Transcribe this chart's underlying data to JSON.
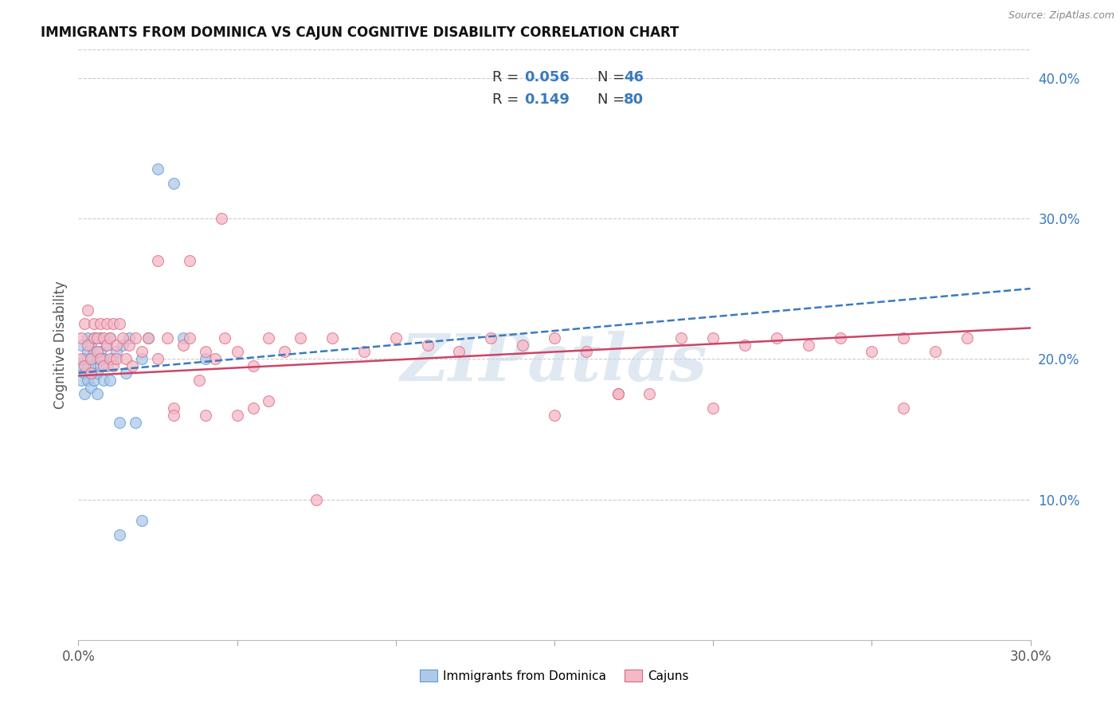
{
  "title": "IMMIGRANTS FROM DOMINICA VS CAJUN COGNITIVE DISABILITY CORRELATION CHART",
  "source": "Source: ZipAtlas.com",
  "ylabel": "Cognitive Disability",
  "xlim": [
    0.0,
    0.3
  ],
  "ylim": [
    0.0,
    0.42
  ],
  "yticks_right": [
    0.1,
    0.2,
    0.3,
    0.4
  ],
  "ytick_labels_right": [
    "10.0%",
    "20.0%",
    "30.0%",
    "40.0%"
  ],
  "watermark": "ZIPatlas",
  "legend_R1": "R = 0.056",
  "legend_N1": "N = 46",
  "legend_R2": "R =  0.149",
  "legend_N2": "N = 80",
  "color_blue_fill": "#aec9e8",
  "color_blue_edge": "#5b9bd5",
  "color_pink_fill": "#f5b8c8",
  "color_pink_edge": "#d9697e",
  "trend_blue_color": "#3a7abf",
  "trend_pink_color": "#cc4466",
  "grid_color": "#cccccc",
  "blue_dots_x": [
    0.001,
    0.001,
    0.001,
    0.002,
    0.002,
    0.002,
    0.003,
    0.003,
    0.003,
    0.003,
    0.003,
    0.004,
    0.004,
    0.004,
    0.004,
    0.005,
    0.005,
    0.005,
    0.005,
    0.006,
    0.006,
    0.006,
    0.007,
    0.007,
    0.007,
    0.008,
    0.008,
    0.009,
    0.009,
    0.01,
    0.01,
    0.011,
    0.012,
    0.013,
    0.014,
    0.015,
    0.016,
    0.018,
    0.02,
    0.022,
    0.025,
    0.03,
    0.033,
    0.04,
    0.02,
    0.013
  ],
  "blue_dots_y": [
    0.195,
    0.21,
    0.185,
    0.2,
    0.19,
    0.175,
    0.2,
    0.195,
    0.215,
    0.185,
    0.205,
    0.2,
    0.19,
    0.21,
    0.18,
    0.195,
    0.205,
    0.185,
    0.215,
    0.2,
    0.19,
    0.175,
    0.205,
    0.195,
    0.215,
    0.185,
    0.2,
    0.195,
    0.21,
    0.185,
    0.215,
    0.2,
    0.205,
    0.155,
    0.21,
    0.19,
    0.215,
    0.155,
    0.2,
    0.215,
    0.335,
    0.325,
    0.215,
    0.2,
    0.085,
    0.075
  ],
  "pink_dots_x": [
    0.001,
    0.001,
    0.002,
    0.002,
    0.003,
    0.003,
    0.004,
    0.004,
    0.005,
    0.005,
    0.006,
    0.006,
    0.007,
    0.007,
    0.008,
    0.008,
    0.009,
    0.009,
    0.01,
    0.01,
    0.011,
    0.011,
    0.012,
    0.012,
    0.013,
    0.014,
    0.015,
    0.016,
    0.017,
    0.018,
    0.02,
    0.022,
    0.025,
    0.028,
    0.03,
    0.033,
    0.035,
    0.038,
    0.04,
    0.043,
    0.046,
    0.05,
    0.055,
    0.06,
    0.065,
    0.07,
    0.075,
    0.08,
    0.09,
    0.1,
    0.11,
    0.12,
    0.13,
    0.14,
    0.15,
    0.16,
    0.17,
    0.18,
    0.19,
    0.2,
    0.21,
    0.22,
    0.23,
    0.24,
    0.25,
    0.26,
    0.27,
    0.28,
    0.03,
    0.04,
    0.05,
    0.06,
    0.025,
    0.035,
    0.045,
    0.055,
    0.15,
    0.26,
    0.2,
    0.17
  ],
  "pink_dots_y": [
    0.2,
    0.215,
    0.195,
    0.225,
    0.21,
    0.235,
    0.2,
    0.19,
    0.215,
    0.225,
    0.205,
    0.215,
    0.225,
    0.2,
    0.215,
    0.195,
    0.21,
    0.225,
    0.2,
    0.215,
    0.195,
    0.225,
    0.21,
    0.2,
    0.225,
    0.215,
    0.2,
    0.21,
    0.195,
    0.215,
    0.205,
    0.215,
    0.2,
    0.215,
    0.165,
    0.21,
    0.215,
    0.185,
    0.205,
    0.2,
    0.215,
    0.205,
    0.195,
    0.215,
    0.205,
    0.215,
    0.1,
    0.215,
    0.205,
    0.215,
    0.21,
    0.205,
    0.215,
    0.21,
    0.215,
    0.205,
    0.175,
    0.175,
    0.215,
    0.215,
    0.21,
    0.215,
    0.21,
    0.215,
    0.205,
    0.215,
    0.205,
    0.215,
    0.16,
    0.16,
    0.16,
    0.17,
    0.27,
    0.27,
    0.3,
    0.165,
    0.16,
    0.165,
    0.165,
    0.175
  ]
}
